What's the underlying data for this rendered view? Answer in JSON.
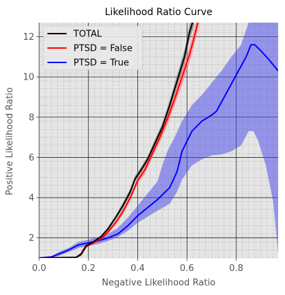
{
  "chart_data": {
    "type": "line",
    "title": "Likelihood Ratio Curve",
    "xlabel": "Negative Likelihood Ratio",
    "ylabel": "Positive Likelihood Ratio",
    "xlim": [
      0.0,
      0.97
    ],
    "ylim": [
      1.0,
      12.7
    ],
    "x_ticks": [
      0.0,
      0.2,
      0.4,
      0.6,
      0.8
    ],
    "x_tick_labels": [
      "0.0",
      "0.2",
      "0.4",
      "0.6",
      "0.8"
    ],
    "y_ticks": [
      2,
      4,
      6,
      8,
      10,
      12
    ],
    "y_tick_labels": [
      "2",
      "4",
      "6",
      "8",
      "10",
      "12"
    ],
    "grid": true,
    "minor_grid": true,
    "legend_position": "upper-left",
    "series": [
      {
        "name": "TOTAL",
        "color": "#000000",
        "band_color": "#555555",
        "points": [
          [
            0.0,
            1.0
          ],
          [
            0.15,
            1.03
          ],
          [
            0.17,
            1.2
          ],
          [
            0.19,
            1.6
          ],
          [
            0.22,
            1.8
          ],
          [
            0.25,
            2.05
          ],
          [
            0.28,
            2.45
          ],
          [
            0.31,
            3.0
          ],
          [
            0.34,
            3.6
          ],
          [
            0.37,
            4.3
          ],
          [
            0.39,
            4.95
          ],
          [
            0.41,
            5.3
          ],
          [
            0.44,
            5.9
          ],
          [
            0.47,
            6.7
          ],
          [
            0.5,
            7.5
          ],
          [
            0.53,
            8.6
          ],
          [
            0.56,
            9.8
          ],
          [
            0.59,
            11.0
          ],
          [
            0.61,
            12.2
          ],
          [
            0.63,
            13.0
          ]
        ],
        "lower": [
          [
            0.0,
            1.0
          ],
          [
            0.15,
            1.0
          ],
          [
            0.17,
            1.15
          ],
          [
            0.19,
            1.55
          ],
          [
            0.22,
            1.75
          ],
          [
            0.25,
            2.0
          ],
          [
            0.28,
            2.35
          ],
          [
            0.31,
            2.9
          ],
          [
            0.34,
            3.45
          ],
          [
            0.37,
            4.15
          ],
          [
            0.39,
            4.8
          ],
          [
            0.41,
            5.15
          ],
          [
            0.44,
            5.75
          ],
          [
            0.47,
            6.5
          ],
          [
            0.5,
            7.3
          ],
          [
            0.53,
            8.35
          ],
          [
            0.56,
            9.5
          ],
          [
            0.59,
            10.65
          ],
          [
            0.61,
            11.8
          ],
          [
            0.63,
            12.6
          ]
        ],
        "upper": [
          [
            0.0,
            1.02
          ],
          [
            0.15,
            1.06
          ],
          [
            0.17,
            1.25
          ],
          [
            0.19,
            1.65
          ],
          [
            0.22,
            1.85
          ],
          [
            0.25,
            2.1
          ],
          [
            0.28,
            2.55
          ],
          [
            0.31,
            3.1
          ],
          [
            0.34,
            3.75
          ],
          [
            0.37,
            4.45
          ],
          [
            0.39,
            5.1
          ],
          [
            0.41,
            5.45
          ],
          [
            0.44,
            6.05
          ],
          [
            0.47,
            6.9
          ],
          [
            0.5,
            7.7
          ],
          [
            0.53,
            8.85
          ],
          [
            0.56,
            10.1
          ],
          [
            0.59,
            11.35
          ],
          [
            0.61,
            12.6
          ],
          [
            0.63,
            13.3
          ]
        ]
      },
      {
        "name": "PTSD = False",
        "color": "#ff0000",
        "band_color": "#ff6666",
        "points": [
          [
            0.0,
            1.0
          ],
          [
            0.15,
            1.02
          ],
          [
            0.17,
            1.15
          ],
          [
            0.19,
            1.55
          ],
          [
            0.22,
            1.75
          ],
          [
            0.25,
            1.95
          ],
          [
            0.28,
            2.3
          ],
          [
            0.31,
            2.75
          ],
          [
            0.34,
            3.3
          ],
          [
            0.37,
            4.0
          ],
          [
            0.4,
            4.85
          ],
          [
            0.43,
            5.4
          ],
          [
            0.46,
            6.2
          ],
          [
            0.49,
            7.0
          ],
          [
            0.52,
            7.9
          ],
          [
            0.55,
            8.9
          ],
          [
            0.58,
            10.0
          ],
          [
            0.61,
            11.1
          ],
          [
            0.63,
            12.0
          ],
          [
            0.65,
            13.0
          ]
        ],
        "lower": [
          [
            0.0,
            1.0
          ],
          [
            0.15,
            1.0
          ],
          [
            0.17,
            1.1
          ],
          [
            0.19,
            1.5
          ],
          [
            0.22,
            1.7
          ],
          [
            0.25,
            1.9
          ],
          [
            0.28,
            2.2
          ],
          [
            0.31,
            2.65
          ],
          [
            0.34,
            3.15
          ],
          [
            0.37,
            3.85
          ],
          [
            0.4,
            4.7
          ],
          [
            0.43,
            5.2
          ],
          [
            0.46,
            6.0
          ],
          [
            0.49,
            6.75
          ],
          [
            0.52,
            7.6
          ],
          [
            0.55,
            8.6
          ],
          [
            0.58,
            9.6
          ],
          [
            0.61,
            10.7
          ],
          [
            0.63,
            11.6
          ],
          [
            0.65,
            12.6
          ]
        ],
        "upper": [
          [
            0.0,
            1.02
          ],
          [
            0.15,
            1.05
          ],
          [
            0.17,
            1.2
          ],
          [
            0.19,
            1.6
          ],
          [
            0.22,
            1.8
          ],
          [
            0.25,
            2.0
          ],
          [
            0.28,
            2.4
          ],
          [
            0.31,
            2.85
          ],
          [
            0.34,
            3.45
          ],
          [
            0.37,
            4.15
          ],
          [
            0.4,
            5.0
          ],
          [
            0.43,
            5.6
          ],
          [
            0.46,
            6.4
          ],
          [
            0.49,
            7.25
          ],
          [
            0.52,
            8.2
          ],
          [
            0.55,
            9.2
          ],
          [
            0.58,
            10.4
          ],
          [
            0.61,
            11.5
          ],
          [
            0.63,
            12.4
          ],
          [
            0.65,
            13.4
          ]
        ]
      },
      {
        "name": "PTSD = True",
        "color": "#0000ff",
        "band_color": "#4444ee",
        "points": [
          [
            0.0,
            1.0
          ],
          [
            0.05,
            1.05
          ],
          [
            0.08,
            1.2
          ],
          [
            0.12,
            1.4
          ],
          [
            0.16,
            1.65
          ],
          [
            0.2,
            1.75
          ],
          [
            0.24,
            1.85
          ],
          [
            0.28,
            2.0
          ],
          [
            0.32,
            2.2
          ],
          [
            0.36,
            2.6
          ],
          [
            0.4,
            3.1
          ],
          [
            0.44,
            3.5
          ],
          [
            0.48,
            3.9
          ],
          [
            0.53,
            4.5
          ],
          [
            0.56,
            5.3
          ],
          [
            0.58,
            6.3
          ],
          [
            0.62,
            7.3
          ],
          [
            0.66,
            7.8
          ],
          [
            0.7,
            8.1
          ],
          [
            0.72,
            8.3
          ],
          [
            0.76,
            9.2
          ],
          [
            0.8,
            10.1
          ],
          [
            0.84,
            11.0
          ],
          [
            0.86,
            11.6
          ],
          [
            0.875,
            11.6
          ],
          [
            0.9,
            11.3
          ],
          [
            0.93,
            10.9
          ],
          [
            0.97,
            10.3
          ]
        ],
        "lower": [
          [
            0.0,
            1.0
          ],
          [
            0.05,
            1.02
          ],
          [
            0.08,
            1.1
          ],
          [
            0.12,
            1.3
          ],
          [
            0.16,
            1.5
          ],
          [
            0.2,
            1.6
          ],
          [
            0.24,
            1.7
          ],
          [
            0.28,
            1.85
          ],
          [
            0.32,
            2.05
          ],
          [
            0.36,
            2.35
          ],
          [
            0.4,
            2.75
          ],
          [
            0.44,
            3.05
          ],
          [
            0.48,
            3.35
          ],
          [
            0.53,
            3.7
          ],
          [
            0.56,
            4.3
          ],
          [
            0.58,
            4.9
          ],
          [
            0.62,
            5.6
          ],
          [
            0.66,
            5.9
          ],
          [
            0.7,
            6.1
          ],
          [
            0.74,
            6.15
          ],
          [
            0.78,
            6.3
          ],
          [
            0.82,
            6.6
          ],
          [
            0.85,
            7.3
          ],
          [
            0.87,
            7.3
          ],
          [
            0.89,
            6.8
          ],
          [
            0.92,
            5.6
          ],
          [
            0.95,
            3.8
          ],
          [
            0.97,
            1.2
          ]
        ],
        "upper": [
          [
            0.0,
            1.02
          ],
          [
            0.05,
            1.1
          ],
          [
            0.08,
            1.3
          ],
          [
            0.12,
            1.5
          ],
          [
            0.16,
            1.8
          ],
          [
            0.2,
            1.9
          ],
          [
            0.24,
            2.05
          ],
          [
            0.28,
            2.2
          ],
          [
            0.32,
            2.5
          ],
          [
            0.36,
            3.0
          ],
          [
            0.4,
            3.6
          ],
          [
            0.44,
            4.2
          ],
          [
            0.48,
            4.8
          ],
          [
            0.5,
            5.6
          ],
          [
            0.52,
            6.3
          ],
          [
            0.55,
            7.0
          ],
          [
            0.58,
            7.8
          ],
          [
            0.62,
            8.6
          ],
          [
            0.66,
            9.1
          ],
          [
            0.7,
            9.7
          ],
          [
            0.74,
            10.3
          ],
          [
            0.78,
            11.0
          ],
          [
            0.82,
            11.6
          ],
          [
            0.85,
            12.7
          ],
          [
            0.9,
            12.7
          ],
          [
            0.93,
            12.7
          ],
          [
            0.97,
            12.7
          ]
        ]
      }
    ]
  }
}
